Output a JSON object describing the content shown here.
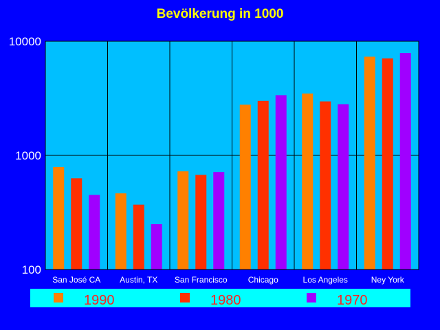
{
  "chart_data": {
    "type": "bar",
    "title": "Bevölkerung in 1000",
    "xlabel": "",
    "ylabel": "",
    "yscale": "log",
    "ylim": [
      100,
      10000
    ],
    "yticks": [
      "100",
      "1000",
      "10000"
    ],
    "grid": true,
    "legend_position": "bottom",
    "categories": [
      "San José CA",
      "Austin, TX",
      "San Francisco",
      "Chicago",
      "Los Angeles",
      "Ney York"
    ],
    "series": [
      {
        "name": "1990",
        "color": "#ff8000",
        "values": [
          790,
          465,
          725,
          2780,
          3480,
          7320
        ]
      },
      {
        "name": "1980",
        "color": "#ff3000",
        "values": [
          630,
          370,
          675,
          3000,
          2970,
          7070
        ]
      },
      {
        "name": "1970",
        "color": "#a000ff",
        "values": [
          450,
          250,
          715,
          3370,
          2810,
          7890
        ]
      }
    ],
    "colors": {
      "background": "#0000ff",
      "plot_area": "#00bfff",
      "legend_area": "#00ffff",
      "title": "#ffff00",
      "legend_text": "#ff2020"
    }
  }
}
